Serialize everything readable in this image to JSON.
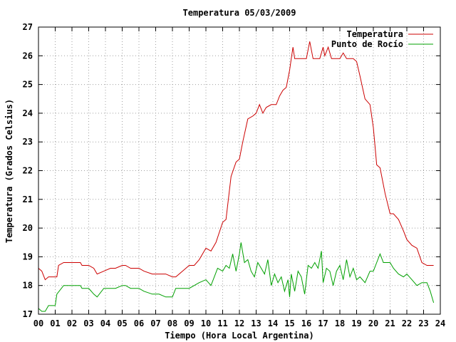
{
  "chart_data": {
    "type": "line",
    "title": "Temperatura 05/03/2009",
    "xlabel": "Tiempo (Hora Local Argentina)",
    "ylabel": "Temperatura (Grados Celsius)",
    "xlim": [
      0,
      24
    ],
    "ylim": [
      17,
      27
    ],
    "x_ticks": [
      0,
      1,
      2,
      3,
      4,
      5,
      6,
      7,
      8,
      9,
      10,
      11,
      12,
      13,
      14,
      15,
      16,
      17,
      18,
      19,
      20,
      21,
      22,
      23,
      24
    ],
    "x_tick_labels": [
      "00",
      "01",
      "02",
      "03",
      "04",
      "05",
      "06",
      "07",
      "08",
      "09",
      "10",
      "11",
      "12",
      "13",
      "14",
      "15",
      "16",
      "17",
      "18",
      "19",
      "20",
      "21",
      "22",
      "23",
      "24"
    ],
    "y_ticks": [
      17,
      18,
      19,
      20,
      21,
      22,
      23,
      24,
      25,
      26,
      27
    ],
    "y_tick_labels": [
      "17",
      "18",
      "19",
      "20",
      "21",
      "22",
      "23",
      "24",
      "25",
      "26",
      "27"
    ],
    "grid": true,
    "legend_position": "top-right",
    "series": [
      {
        "name": "Temperatura",
        "color": "#cc0000",
        "x": [
          0,
          0.2,
          0.4,
          0.6,
          1.1,
          1.2,
          1.5,
          2.5,
          2.6,
          3.0,
          3.3,
          3.5,
          3.9,
          4.3,
          4.6,
          5.0,
          5.2,
          5.5,
          6.0,
          6.3,
          6.8,
          7.2,
          7.6,
          8.0,
          8.2,
          8.6,
          9.0,
          9.3,
          9.6,
          10.0,
          10.3,
          10.6,
          11.0,
          11.2,
          11.5,
          11.8,
          12.0,
          12.2,
          12.5,
          12.8,
          13.0,
          13.2,
          13.4,
          13.6,
          13.9,
          14.2,
          14.4,
          14.6,
          14.8,
          15.0,
          15.1,
          15.2,
          15.3,
          15.5,
          16.0,
          16.2,
          16.4,
          16.6,
          16.8,
          17.0,
          17.1,
          17.3,
          17.5,
          17.7,
          18.0,
          18.2,
          18.4,
          18.6,
          18.8,
          19.0,
          19.2,
          19.5,
          19.8,
          20.0,
          20.2,
          20.4,
          20.7,
          21.0,
          21.2,
          21.5,
          21.8,
          22.0,
          22.3,
          22.6,
          22.9,
          23.2,
          23.4,
          23.6
        ],
        "values": [
          18.6,
          18.5,
          18.2,
          18.3,
          18.3,
          18.7,
          18.8,
          18.8,
          18.7,
          18.7,
          18.6,
          18.4,
          18.5,
          18.6,
          18.6,
          18.7,
          18.7,
          18.6,
          18.6,
          18.5,
          18.4,
          18.4,
          18.4,
          18.3,
          18.3,
          18.5,
          18.7,
          18.7,
          18.9,
          19.3,
          19.2,
          19.5,
          20.2,
          20.3,
          21.8,
          22.3,
          22.4,
          23.0,
          23.8,
          23.9,
          24.0,
          24.3,
          24.0,
          24.2,
          24.3,
          24.3,
          24.6,
          24.8,
          24.9,
          25.5,
          25.9,
          26.3,
          25.9,
          25.9,
          25.9,
          26.5,
          25.9,
          25.9,
          25.9,
          26.3,
          26.0,
          26.3,
          25.9,
          25.9,
          25.9,
          26.1,
          25.9,
          25.9,
          25.9,
          25.8,
          25.3,
          24.5,
          24.3,
          23.5,
          22.2,
          22.1,
          21.2,
          20.5,
          20.5,
          20.3,
          19.9,
          19.6,
          19.4,
          19.3,
          18.8,
          18.7,
          18.7,
          18.7
        ]
      },
      {
        "name": "Punto de Rocío",
        "color": "#00a000",
        "x": [
          0,
          0.2,
          0.4,
          0.6,
          1.0,
          1.1,
          1.5,
          2.5,
          2.6,
          3.0,
          3.3,
          3.5,
          3.9,
          4.3,
          4.6,
          5.0,
          5.2,
          5.5,
          6.0,
          6.3,
          6.8,
          7.2,
          7.6,
          8.0,
          8.2,
          8.6,
          9.0,
          9.3,
          9.6,
          10.0,
          10.3,
          10.5,
          10.7,
          11.0,
          11.2,
          11.4,
          11.6,
          11.8,
          12.0,
          12.1,
          12.3,
          12.5,
          12.7,
          12.9,
          13.1,
          13.3,
          13.5,
          13.7,
          13.9,
          14.1,
          14.3,
          14.5,
          14.7,
          14.9,
          15.0,
          15.1,
          15.3,
          15.5,
          15.7,
          15.9,
          16.1,
          16.3,
          16.5,
          16.7,
          16.9,
          17.0,
          17.2,
          17.4,
          17.6,
          17.8,
          18.0,
          18.2,
          18.4,
          18.6,
          18.8,
          19.0,
          19.2,
          19.5,
          19.8,
          20.0,
          20.2,
          20.4,
          20.6,
          21.0,
          21.2,
          21.5,
          21.8,
          22.0,
          22.3,
          22.6,
          22.9,
          23.2,
          23.4,
          23.6
        ],
        "values": [
          17.2,
          17.1,
          17.1,
          17.3,
          17.3,
          17.7,
          18.0,
          18.0,
          17.9,
          17.9,
          17.7,
          17.6,
          17.9,
          17.9,
          17.9,
          18.0,
          18.0,
          17.9,
          17.9,
          17.8,
          17.7,
          17.7,
          17.6,
          17.6,
          17.9,
          17.9,
          17.9,
          18.0,
          18.1,
          18.2,
          18.0,
          18.3,
          18.6,
          18.5,
          18.7,
          18.6,
          19.1,
          18.5,
          19.1,
          19.5,
          18.8,
          18.9,
          18.5,
          18.3,
          18.8,
          18.6,
          18.4,
          18.9,
          18.0,
          18.4,
          18.1,
          18.3,
          17.8,
          18.2,
          17.6,
          18.4,
          17.8,
          18.5,
          18.3,
          17.7,
          18.7,
          18.6,
          18.8,
          18.6,
          19.2,
          18.1,
          18.6,
          18.5,
          18.0,
          18.5,
          18.7,
          18.2,
          18.9,
          18.3,
          18.6,
          18.2,
          18.3,
          18.1,
          18.5,
          18.5,
          18.8,
          19.1,
          18.8,
          18.8,
          18.6,
          18.4,
          18.3,
          18.4,
          18.2,
          18.0,
          18.1,
          18.1,
          17.8,
          17.4
        ]
      }
    ]
  }
}
